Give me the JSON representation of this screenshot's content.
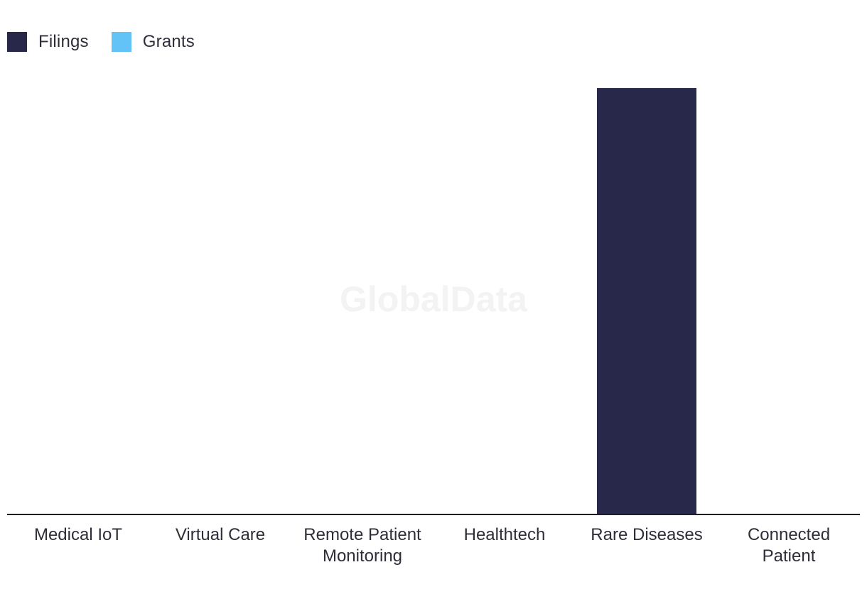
{
  "chart_data": {
    "type": "bar",
    "categories": [
      "Medical IoT",
      "Virtual Care",
      "Remote Patient\nMonitoring",
      "Healthtech",
      "Rare Diseases",
      "Connected\nPatient"
    ],
    "series": [
      {
        "name": "Filings",
        "values": [
          0,
          0,
          0,
          0,
          1,
          0
        ],
        "color": "#27284a"
      },
      {
        "name": "Grants",
        "values": [
          0,
          0,
          0,
          0,
          0,
          0
        ],
        "color": "#63c3f7"
      }
    ],
    "title": "",
    "xlabel": "",
    "ylabel": "",
    "ylim": [
      0,
      1
    ],
    "grid": false,
    "legend_position": "top-left"
  },
  "watermark": "GlobalData"
}
